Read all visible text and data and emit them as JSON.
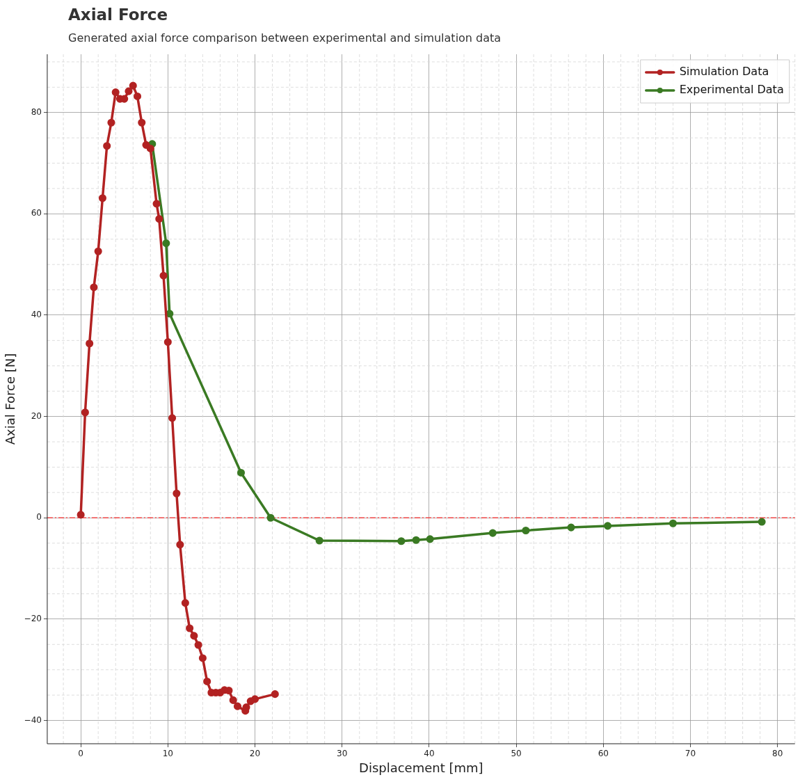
{
  "chart_data": {
    "type": "line",
    "title": "Axial Force",
    "subtitle": "Generated axial force comparison between experimental and simulation data",
    "xlabel": "Displacement [mm]",
    "ylabel": "Axial Force [N]",
    "series": [
      {
        "name": "Simulation Data",
        "color": "#b22222",
        "x": [
          0,
          0.5,
          1,
          1.5,
          2,
          2.5,
          3,
          3.5,
          4,
          4.5,
          5,
          5.5,
          6,
          6.5,
          7,
          7.5,
          8,
          8.7,
          9,
          9.5,
          10,
          10.5,
          11,
          11.4,
          12,
          12.5,
          13,
          13.5,
          14,
          14.5,
          15,
          15.5,
          16,
          16.5,
          17,
          17.5,
          18,
          18.9,
          19,
          19.5,
          20,
          22.3
        ],
        "values": [
          0.6,
          20.8,
          34.4,
          45.5,
          52.6,
          63.1,
          73.4,
          78,
          84,
          82.7,
          82.7,
          84.2,
          85.3,
          83.2,
          78,
          73.6,
          72.9,
          62,
          59,
          47.8,
          34.7,
          19.7,
          4.8,
          -5.3,
          -16.8,
          -21.8,
          -23.3,
          -25.1,
          -27.7,
          -32.3,
          -34.5,
          -34.5,
          -34.5,
          -34,
          -34.1,
          -36,
          -37.2,
          -38.1,
          -37.4,
          -36.2,
          -35.8,
          -34.8
        ]
      },
      {
        "name": "Experimental Data",
        "color": "#3a7a23",
        "x": [
          8.2,
          9.8,
          10.2,
          18.4,
          21.8,
          27.4,
          36.8,
          38.5,
          40.1,
          47.3,
          51.1,
          56.3,
          60.5,
          68,
          78.2
        ],
        "values": [
          73.8,
          54.2,
          40.3,
          8.9,
          0,
          -4.5,
          -4.6,
          -4.4,
          -4.2,
          -3,
          -2.5,
          -1.9,
          -1.6,
          -1.1,
          -0.8
        ]
      }
    ],
    "xlim": [
      -3.85,
      82
    ],
    "ylim": [
      -44.6,
      91.5
    ],
    "xticks": [
      0,
      10,
      20,
      30,
      40,
      50,
      60,
      70,
      80
    ],
    "yticks": [
      -40,
      -20,
      0,
      20,
      40,
      60,
      80
    ],
    "ref_lines": [
      {
        "axis": "y",
        "value": 0,
        "color": "#ee4444",
        "line_style": "dashdot"
      }
    ],
    "grid": true,
    "legend": "top right",
    "marker": "circle",
    "line_style": "solid"
  }
}
